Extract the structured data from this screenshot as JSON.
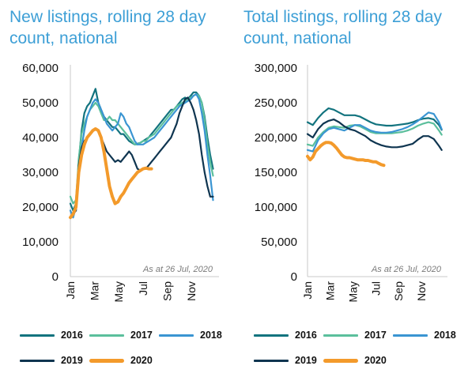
{
  "chart_data": [
    {
      "type": "line",
      "title": "New listings, rolling 28 day count, national",
      "annotation": "As at 26 Jul, 2020",
      "x_tick_labels": [
        "Jan",
        "Mar",
        "May",
        "Jul",
        "Sep",
        "Nov"
      ],
      "x_tick_weeks": [
        0,
        8.6,
        17.3,
        26,
        34.6,
        43.3
      ],
      "ylim": [
        0,
        60000
      ],
      "y_ticks": [
        "0",
        "10,000",
        "20,000",
        "30,000",
        "40,000",
        "50,000",
        "60,000"
      ],
      "x_unit": "week of year",
      "series": [
        {
          "name": "2016",
          "color": "#12737e",
          "width": 2.2,
          "x": [
            0,
            1,
            2,
            3,
            4,
            5,
            6,
            7,
            8,
            9,
            10,
            11,
            12,
            13,
            14,
            15,
            16,
            17,
            18,
            19,
            20,
            21,
            22,
            23,
            24,
            25,
            26,
            27,
            28,
            29,
            30,
            31,
            32,
            33,
            34,
            35,
            36,
            37,
            38,
            39,
            40,
            41,
            42,
            43,
            44,
            45,
            46,
            47,
            48,
            49,
            50,
            51
          ],
          "y": [
            21000,
            19000,
            21000,
            33000,
            42000,
            47000,
            49000,
            50000,
            52000,
            54000,
            50000,
            48000,
            46000,
            45000,
            44000,
            43000,
            43000,
            42000,
            41000,
            41000,
            40000,
            39000,
            38500,
            38000,
            38200,
            38500,
            39000,
            39500,
            40000,
            41000,
            42000,
            43000,
            44000,
            45000,
            46000,
            47000,
            48000,
            48000,
            49000,
            50000,
            51000,
            51500,
            51000,
            52000,
            53000,
            53000,
            52000,
            50000,
            46000,
            40000,
            35000,
            31000
          ]
        },
        {
          "name": "2017",
          "color": "#5bbf9c",
          "width": 2.2,
          "x": [
            0,
            1,
            2,
            3,
            4,
            5,
            6,
            7,
            8,
            9,
            10,
            11,
            12,
            13,
            14,
            15,
            16,
            17,
            18,
            19,
            20,
            21,
            22,
            23,
            24,
            25,
            26,
            27,
            28,
            29,
            30,
            31,
            32,
            33,
            34,
            35,
            36,
            37,
            38,
            39,
            40,
            41,
            42,
            43,
            44,
            45,
            46,
            47,
            48,
            49,
            50,
            51
          ],
          "y": [
            23000,
            21000,
            22000,
            34000,
            41000,
            44000,
            46000,
            48000,
            49000,
            50000,
            49000,
            47000,
            45000,
            45000,
            46000,
            45000,
            45000,
            44000,
            43000,
            42000,
            41000,
            40000,
            39000,
            38000,
            38000,
            38500,
            39000,
            39000,
            40000,
            40500,
            41000,
            42000,
            43000,
            44000,
            45000,
            46000,
            47000,
            48000,
            49000,
            49500,
            50000,
            50500,
            51000,
            51500,
            52000,
            52500,
            52000,
            50000,
            45000,
            38000,
            33000,
            29000
          ]
        },
        {
          "name": "2018",
          "color": "#3a95d2",
          "width": 2.2,
          "x": [
            0,
            1,
            2,
            3,
            4,
            5,
            6,
            7,
            8,
            9,
            10,
            11,
            12,
            13,
            14,
            15,
            16,
            17,
            18,
            19,
            20,
            21,
            22,
            23,
            24,
            25,
            26,
            27,
            28,
            29,
            30,
            31,
            32,
            33,
            34,
            35,
            36,
            37,
            38,
            39,
            40,
            41,
            42,
            43,
            44,
            45,
            46,
            47,
            48,
            49,
            50,
            51
          ],
          "y": [
            19000,
            17000,
            20000,
            30000,
            37000,
            42000,
            46000,
            48000,
            50000,
            51000,
            50000,
            48000,
            46000,
            44000,
            43000,
            42000,
            43000,
            44000,
            47000,
            46000,
            44000,
            43000,
            41000,
            39000,
            38000,
            38000,
            38000,
            38500,
            39000,
            39500,
            40000,
            41000,
            42000,
            43000,
            44000,
            45000,
            46000,
            47000,
            48000,
            49000,
            49500,
            50000,
            50500,
            51000,
            52000,
            52500,
            51000,
            47000,
            42000,
            35000,
            29000,
            22000
          ]
        },
        {
          "name": "2019",
          "color": "#0f3550",
          "width": 2.2,
          "x": [
            0,
            1,
            2,
            3,
            4,
            5,
            6,
            7,
            8,
            9,
            10,
            11,
            12,
            13,
            14,
            15,
            16,
            17,
            18,
            19,
            20,
            21,
            22,
            23,
            24,
            25,
            26,
            27,
            28,
            29,
            30,
            31,
            32,
            33,
            34,
            35,
            36,
            37,
            38,
            39,
            40,
            41,
            42,
            43,
            44,
            45,
            46,
            47,
            48,
            49,
            50,
            51
          ],
          "y": [
            17000,
            18000,
            19000,
            32000,
            37000,
            39000,
            40000,
            41000,
            42000,
            42500,
            42000,
            40000,
            38000,
            36000,
            35000,
            34000,
            33000,
            33500,
            33000,
            34000,
            35000,
            36000,
            35000,
            33000,
            31000,
            30500,
            31000,
            31000,
            32000,
            33000,
            34000,
            35000,
            36000,
            37000,
            38000,
            39000,
            40000,
            42000,
            44000,
            47000,
            49000,
            51000,
            51500,
            50000,
            48000,
            45000,
            41000,
            35000,
            30000,
            26000,
            23000,
            23000
          ]
        },
        {
          "name": "2020",
          "color": "#f39a2b",
          "width": 4,
          "x": [
            0,
            1,
            2,
            3,
            4,
            5,
            6,
            7,
            8,
            9,
            10,
            11,
            12,
            13,
            14,
            15,
            16,
            17,
            18,
            19,
            20,
            21,
            22,
            23,
            24,
            25,
            26,
            27,
            28,
            29
          ],
          "y": [
            17000,
            18000,
            20000,
            30000,
            35000,
            38000,
            40000,
            41000,
            42000,
            42500,
            42000,
            40000,
            36000,
            31000,
            26000,
            23000,
            21000,
            21500,
            23000,
            24000,
            25500,
            27000,
            28000,
            29000,
            30000,
            30500,
            31000,
            31200,
            31000,
            31000
          ]
        }
      ]
    },
    {
      "type": "line",
      "title": "Total listings, rolling 28 day count, national",
      "annotation": "As at 26 Jul, 2020",
      "x_tick_labels": [
        "Jan",
        "Mar",
        "May",
        "Jul",
        "Sep",
        "Nov"
      ],
      "x_tick_weeks": [
        0,
        8.6,
        17.3,
        26,
        34.6,
        43.3
      ],
      "ylim": [
        0,
        300000
      ],
      "y_ticks": [
        "0",
        "50,000",
        "100,000",
        "150,000",
        "200,000",
        "250,000",
        "300,000"
      ],
      "x_unit": "week of year",
      "series": [
        {
          "name": "2016",
          "color": "#12737e",
          "width": 2.2,
          "x": [
            0,
            2,
            4,
            6,
            8,
            10,
            12,
            14,
            16,
            18,
            20,
            22,
            24,
            26,
            28,
            30,
            32,
            34,
            36,
            38,
            40,
            42,
            44,
            46,
            48,
            50,
            51
          ],
          "y": [
            222000,
            218000,
            228000,
            236000,
            242000,
            240000,
            236000,
            232000,
            232000,
            232000,
            230000,
            226000,
            222000,
            219000,
            218000,
            217000,
            217000,
            218000,
            219000,
            220000,
            222000,
            225000,
            227000,
            228000,
            226000,
            218000,
            211000
          ]
        },
        {
          "name": "2017",
          "color": "#5bbf9c",
          "width": 2.2,
          "x": [
            0,
            2,
            4,
            6,
            8,
            10,
            12,
            14,
            16,
            18,
            20,
            22,
            24,
            26,
            28,
            30,
            32,
            34,
            36,
            38,
            40,
            42,
            44,
            46,
            48,
            50,
            51
          ],
          "y": [
            190000,
            188000,
            200000,
            208000,
            214000,
            216000,
            215000,
            214000,
            217000,
            218000,
            216000,
            212000,
            208000,
            206000,
            206000,
            206000,
            206000,
            207000,
            208000,
            210000,
            213000,
            217000,
            220000,
            222000,
            220000,
            210000,
            204000
          ]
        },
        {
          "name": "2018",
          "color": "#3a95d2",
          "width": 2.2,
          "x": [
            0,
            2,
            4,
            6,
            8,
            10,
            12,
            14,
            16,
            18,
            20,
            22,
            24,
            26,
            28,
            30,
            32,
            34,
            36,
            38,
            40,
            42,
            44,
            46,
            48,
            50,
            51
          ],
          "y": [
            182000,
            180000,
            196000,
            206000,
            212000,
            214000,
            212000,
            210000,
            214000,
            218000,
            218000,
            214000,
            210000,
            208000,
            207000,
            207000,
            208000,
            210000,
            212000,
            215000,
            219000,
            224000,
            230000,
            236000,
            234000,
            222000,
            212000
          ]
        },
        {
          "name": "2019",
          "color": "#0f3550",
          "width": 2.2,
          "x": [
            0,
            2,
            4,
            6,
            8,
            10,
            12,
            14,
            16,
            18,
            20,
            22,
            24,
            26,
            28,
            30,
            32,
            34,
            36,
            38,
            40,
            42,
            44,
            46,
            48,
            50,
            51
          ],
          "y": [
            205000,
            200000,
            212000,
            220000,
            224000,
            226000,
            222000,
            216000,
            212000,
            210000,
            206000,
            202000,
            196000,
            192000,
            189000,
            187000,
            186000,
            186000,
            187000,
            189000,
            191000,
            197000,
            202000,
            202000,
            198000,
            188000,
            182000
          ]
        },
        {
          "name": "2020",
          "color": "#f39a2b",
          "width": 4,
          "x": [
            0,
            1,
            2,
            3,
            4,
            5,
            6,
            7,
            8,
            9,
            10,
            11,
            12,
            13,
            14,
            15,
            16,
            17,
            18,
            19,
            20,
            21,
            22,
            23,
            24,
            25,
            26,
            27,
            28,
            29
          ],
          "y": [
            173000,
            168000,
            172000,
            180000,
            184000,
            188000,
            191000,
            193000,
            193000,
            192000,
            189000,
            185000,
            180000,
            175000,
            172000,
            171000,
            171000,
            170000,
            169000,
            168000,
            168000,
            168000,
            167000,
            167000,
            166000,
            165000,
            165000,
            163000,
            161000,
            160000
          ]
        }
      ]
    }
  ],
  "legend": [
    {
      "name": "2016",
      "color": "#12737e"
    },
    {
      "name": "2017",
      "color": "#5bbf9c"
    },
    {
      "name": "2018",
      "color": "#3a95d2"
    },
    {
      "name": "2019",
      "color": "#0f3550"
    },
    {
      "name": "2020",
      "color": "#f39a2b"
    }
  ]
}
